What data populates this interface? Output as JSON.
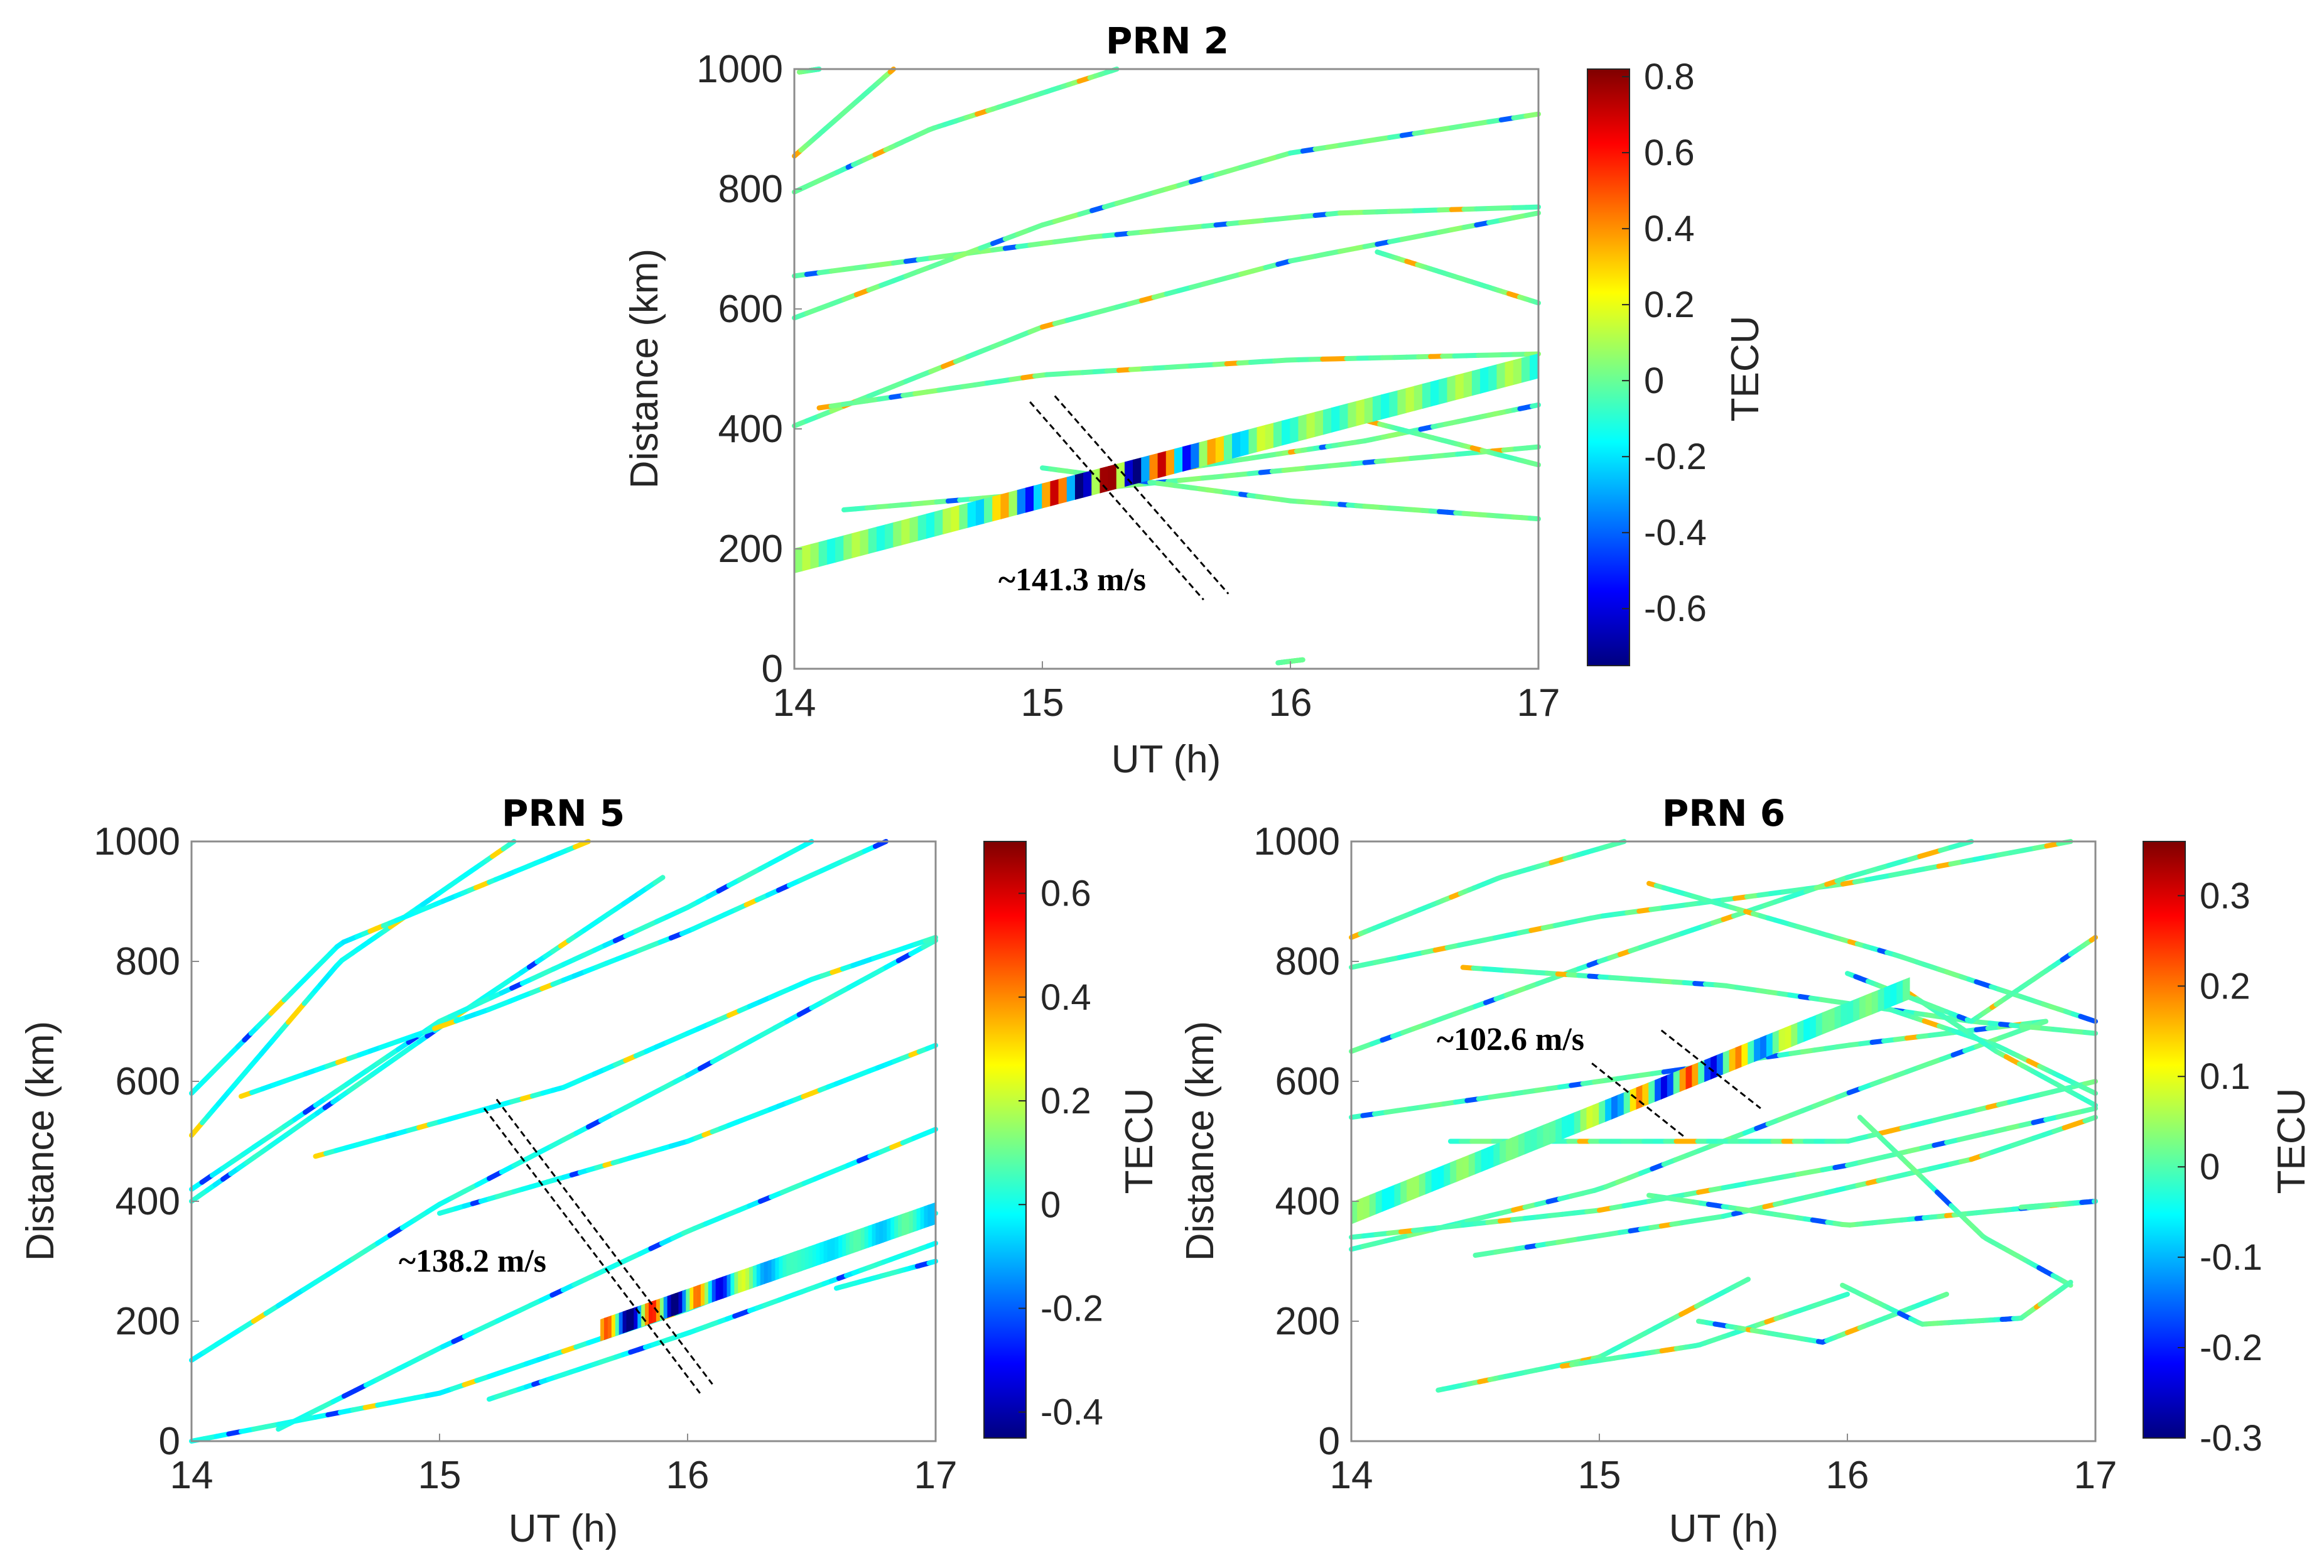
{
  "colors": {
    "jet": [
      "#00007f",
      "#0000ff",
      "#007fff",
      "#00ffff",
      "#7fff7f",
      "#ffff00",
      "#ff7f00",
      "#ff0000",
      "#7f0000"
    ],
    "axis": "#262626",
    "frame": "#8c8c8c"
  },
  "chart_data": [
    {
      "type": "scatter",
      "title": "PRN 2",
      "xlabel": "UT (h)",
      "ylabel": "Distance (km)",
      "xlim": [
        14,
        17
      ],
      "ylim": [
        0,
        1000
      ],
      "xticks": [
        "14",
        "15",
        "16",
        "17"
      ],
      "yticks": [
        "0",
        "200",
        "400",
        "600",
        "800",
        "1000"
      ],
      "colorbar": {
        "label": "TECU",
        "min": -0.75,
        "max": 0.82,
        "ticks": [
          "0.8",
          "0.6",
          "0.4",
          "0.2",
          "0",
          "-0.2",
          "-0.4",
          "-0.6"
        ],
        "tick_values": [
          0.8,
          0.6,
          0.4,
          0.2,
          0,
          -0.2,
          -0.4,
          -0.6
        ]
      },
      "annotation": {
        "text": "~141.3 m/s",
        "x": 14.83,
        "y": 135
      },
      "dashed_lines": [
        {
          "x": [
            14.95,
            15.65
          ],
          "y": [
            445,
            115
          ]
        },
        {
          "x": [
            15.05,
            15.75
          ],
          "y": [
            455,
            125
          ]
        }
      ],
      "band": {
        "x": [
          14,
          17
        ],
        "y": [
          180,
          505
        ],
        "width": 40,
        "tec_amplitude": 0.75,
        "wave_center": 15.25,
        "wave_period": 0.22
      },
      "tracks": [
        {
          "x": [
            14.0,
            14.4
          ],
          "y": [
            855,
            1000
          ]
        },
        {
          "x": [
            14.0,
            14.55,
            15.3
          ],
          "y": [
            795,
            900,
            1000
          ]
        },
        {
          "x": [
            14.02,
            14.1
          ],
          "y": [
            995,
            1000
          ]
        },
        {
          "x": [
            14.0,
            15.2,
            16.2,
            17.0
          ],
          "y": [
            655,
            720,
            760,
            770
          ]
        },
        {
          "x": [
            14.0,
            15.0,
            16.0,
            17.0
          ],
          "y": [
            585,
            740,
            860,
            925
          ]
        },
        {
          "x": [
            14.0,
            15.0,
            16.0,
            17.0
          ],
          "y": [
            405,
            570,
            680,
            760
          ]
        },
        {
          "x": [
            14.1,
            15.0,
            16.0,
            17.0
          ],
          "y": [
            435,
            490,
            515,
            525
          ]
        },
        {
          "x": [
            16.35,
            17.0
          ],
          "y": [
            695,
            610
          ]
        },
        {
          "x": [
            14.2,
            15.2,
            16.2,
            17.0
          ],
          "y": [
            265,
            300,
            340,
            370
          ]
        },
        {
          "x": [
            15.0,
            16.0,
            17.0
          ],
          "y": [
            335,
            280,
            250
          ]
        },
        {
          "x": [
            15.5,
            16.3,
            17.0
          ],
          "y": [
            330,
            380,
            440
          ]
        },
        {
          "x": [
            16.2,
            17.0
          ],
          "y": [
            425,
            340
          ]
        },
        {
          "x": [
            15.95,
            16.05
          ],
          "y": [
            10,
            15
          ]
        }
      ]
    },
    {
      "type": "scatter",
      "title": "PRN 5",
      "xlabel": "UT (h)",
      "ylabel": "Distance (km)",
      "xlim": [
        14,
        17
      ],
      "ylim": [
        0,
        1000
      ],
      "xticks": [
        "14",
        "15",
        "16",
        "17"
      ],
      "yticks": [
        "0",
        "200",
        "400",
        "600",
        "800",
        "1000"
      ],
      "colorbar": {
        "label": "TECU",
        "min": -0.45,
        "max": 0.7,
        "ticks": [
          "0.6",
          "0.4",
          "0.2",
          "0",
          "-0.2",
          "-0.4"
        ],
        "tick_values": [
          0.6,
          0.4,
          0.2,
          0,
          -0.2,
          -0.4
        ]
      },
      "annotation": {
        "text": "~138.2 m/s",
        "x": 14.85,
        "y": 295
      },
      "dashed_lines": [
        {
          "x": [
            15.18,
            16.05
          ],
          "y": [
            555,
            80
          ]
        },
        {
          "x": [
            15.23,
            16.1
          ],
          "y": [
            570,
            95
          ]
        }
      ],
      "band": {
        "x": [
          15.65,
          17.0
        ],
        "y": [
          185,
          380
        ],
        "width": 35,
        "tec_amplitude": 0.45,
        "wave_center": 15.85,
        "wave_period": 0.18
      },
      "tracks": [
        {
          "x": [
            14.0,
            14.6,
            15.3
          ],
          "y": [
            510,
            800,
            1000
          ]
        },
        {
          "x": [
            14.0,
            14.6,
            15.6
          ],
          "y": [
            580,
            830,
            1000
          ]
        },
        {
          "x": [
            14.0,
            15.0,
            15.9
          ],
          "y": [
            400,
            690,
            940
          ]
        },
        {
          "x": [
            14.0,
            15.0,
            16.0,
            16.5
          ],
          "y": [
            420,
            700,
            890,
            1000
          ]
        },
        {
          "x": [
            14.0,
            15.0,
            16.0,
            17.0
          ],
          "y": [
            135,
            395,
            610,
            835
          ]
        },
        {
          "x": [
            14.2,
            15.2,
            16.0,
            16.8
          ],
          "y": [
            575,
            720,
            850,
            1000
          ]
        },
        {
          "x": [
            14.5,
            15.5,
            16.5,
            17.0
          ],
          "y": [
            475,
            590,
            770,
            840
          ]
        },
        {
          "x": [
            15.0,
            16.0,
            17.0
          ],
          "y": [
            380,
            500,
            660
          ]
        },
        {
          "x": [
            14.35,
            15.0,
            16.0,
            17.0
          ],
          "y": [
            20,
            155,
            350,
            520
          ]
        },
        {
          "x": [
            15.2,
            16.0,
            17.0
          ],
          "y": [
            70,
            180,
            330
          ]
        },
        {
          "x": [
            16.6,
            17.0
          ],
          "y": [
            255,
            300
          ]
        },
        {
          "x": [
            14.0,
            15.0,
            16.0,
            17.0
          ],
          "y": [
            0,
            80,
            220,
            380
          ]
        }
      ]
    },
    {
      "type": "scatter",
      "title": "PRN 6",
      "xlabel": "UT (h)",
      "ylabel": "Distance (km)",
      "xlim": [
        14,
        17
      ],
      "ylim": [
        0,
        1000
      ],
      "xticks": [
        "14",
        "15",
        "16",
        "17"
      ],
      "yticks": [
        "0",
        "200",
        "400",
        "600",
        "800",
        "1000"
      ],
      "colorbar": {
        "label": "TECU",
        "min": -0.3,
        "max": 0.36,
        "ticks": [
          "0.3",
          "0.2",
          "0.1",
          "0",
          "-0.1",
          "-0.2",
          "-0.3"
        ],
        "tick_values": [
          0.3,
          0.2,
          0.1,
          0,
          -0.1,
          -0.2,
          -0.3
        ]
      },
      "annotation": {
        "text": "~102.6 m/s",
        "x": 14.35,
        "y": 665
      },
      "dashed_lines": [
        {
          "x": [
            14.97,
            15.35
          ],
          "y": [
            630,
            505
          ]
        },
        {
          "x": [
            15.25,
            15.65
          ],
          "y": [
            685,
            555
          ]
        }
      ],
      "band": {
        "x": [
          14.0,
          16.25
        ],
        "y": [
          380,
          755
        ],
        "width": 35,
        "tec_amplitude": 0.3,
        "wave_center": 15.35,
        "wave_period": 0.2
      },
      "tracks": [
        {
          "x": [
            14.0,
            14.6,
            15.1
          ],
          "y": [
            840,
            940,
            1000
          ]
        },
        {
          "x": [
            14.0,
            15.0,
            16.0,
            16.9
          ],
          "y": [
            790,
            875,
            930,
            1000
          ]
        },
        {
          "x": [
            14.0,
            15.0,
            16.0,
            16.5
          ],
          "y": [
            650,
            800,
            940,
            1000
          ]
        },
        {
          "x": [
            14.0,
            15.0,
            16.0,
            16.8
          ],
          "y": [
            540,
            600,
            660,
            700
          ]
        },
        {
          "x": [
            14.0,
            15.0,
            16.0,
            16.8
          ],
          "y": [
            320,
            420,
            580,
            700
          ]
        },
        {
          "x": [
            14.0,
            15.0,
            16.0,
            17.0
          ],
          "y": [
            340,
            385,
            460,
            555
          ]
        },
        {
          "x": [
            14.4,
            15.0,
            16.0,
            17.0
          ],
          "y": [
            500,
            500,
            500,
            600
          ]
        },
        {
          "x": [
            14.5,
            15.5,
            16.5,
            17.0
          ],
          "y": [
            310,
            375,
            470,
            540
          ]
        },
        {
          "x": [
            15.2,
            16.0,
            17.0
          ],
          "y": [
            410,
            360,
            400
          ]
        },
        {
          "x": [
            14.45,
            15.5,
            16.5,
            17.0
          ],
          "y": [
            790,
            760,
            700,
            680
          ]
        },
        {
          "x": [
            15.2,
            16.2,
            17.0
          ],
          "y": [
            930,
            810,
            700
          ]
        },
        {
          "x": [
            16.1,
            16.6,
            17.0
          ],
          "y": [
            730,
            660,
            580
          ]
        },
        {
          "x": [
            16.2,
            16.6,
            17.0
          ],
          "y": [
            760,
            650,
            560
          ]
        },
        {
          "x": [
            16.0,
            16.5,
            17.0
          ],
          "y": [
            780,
            700,
            840
          ]
        },
        {
          "x": [
            16.05,
            16.55,
            16.9
          ],
          "y": [
            540,
            340,
            260
          ]
        },
        {
          "x": [
            14.35,
            15.0,
            15.6
          ],
          "y": [
            85,
            140,
            270
          ]
        },
        {
          "x": [
            14.85,
            15.4,
            16.0
          ],
          "y": [
            125,
            160,
            245
          ]
        },
        {
          "x": [
            15.4,
            15.9,
            16.4
          ],
          "y": [
            200,
            165,
            245
          ]
        },
        {
          "x": [
            15.98,
            16.3,
            16.7,
            16.9
          ],
          "y": [
            260,
            195,
            205,
            265
          ]
        },
        {
          "x": [
            16.7,
            17.0
          ],
          "y": [
            390,
            400
          ]
        }
      ]
    }
  ]
}
